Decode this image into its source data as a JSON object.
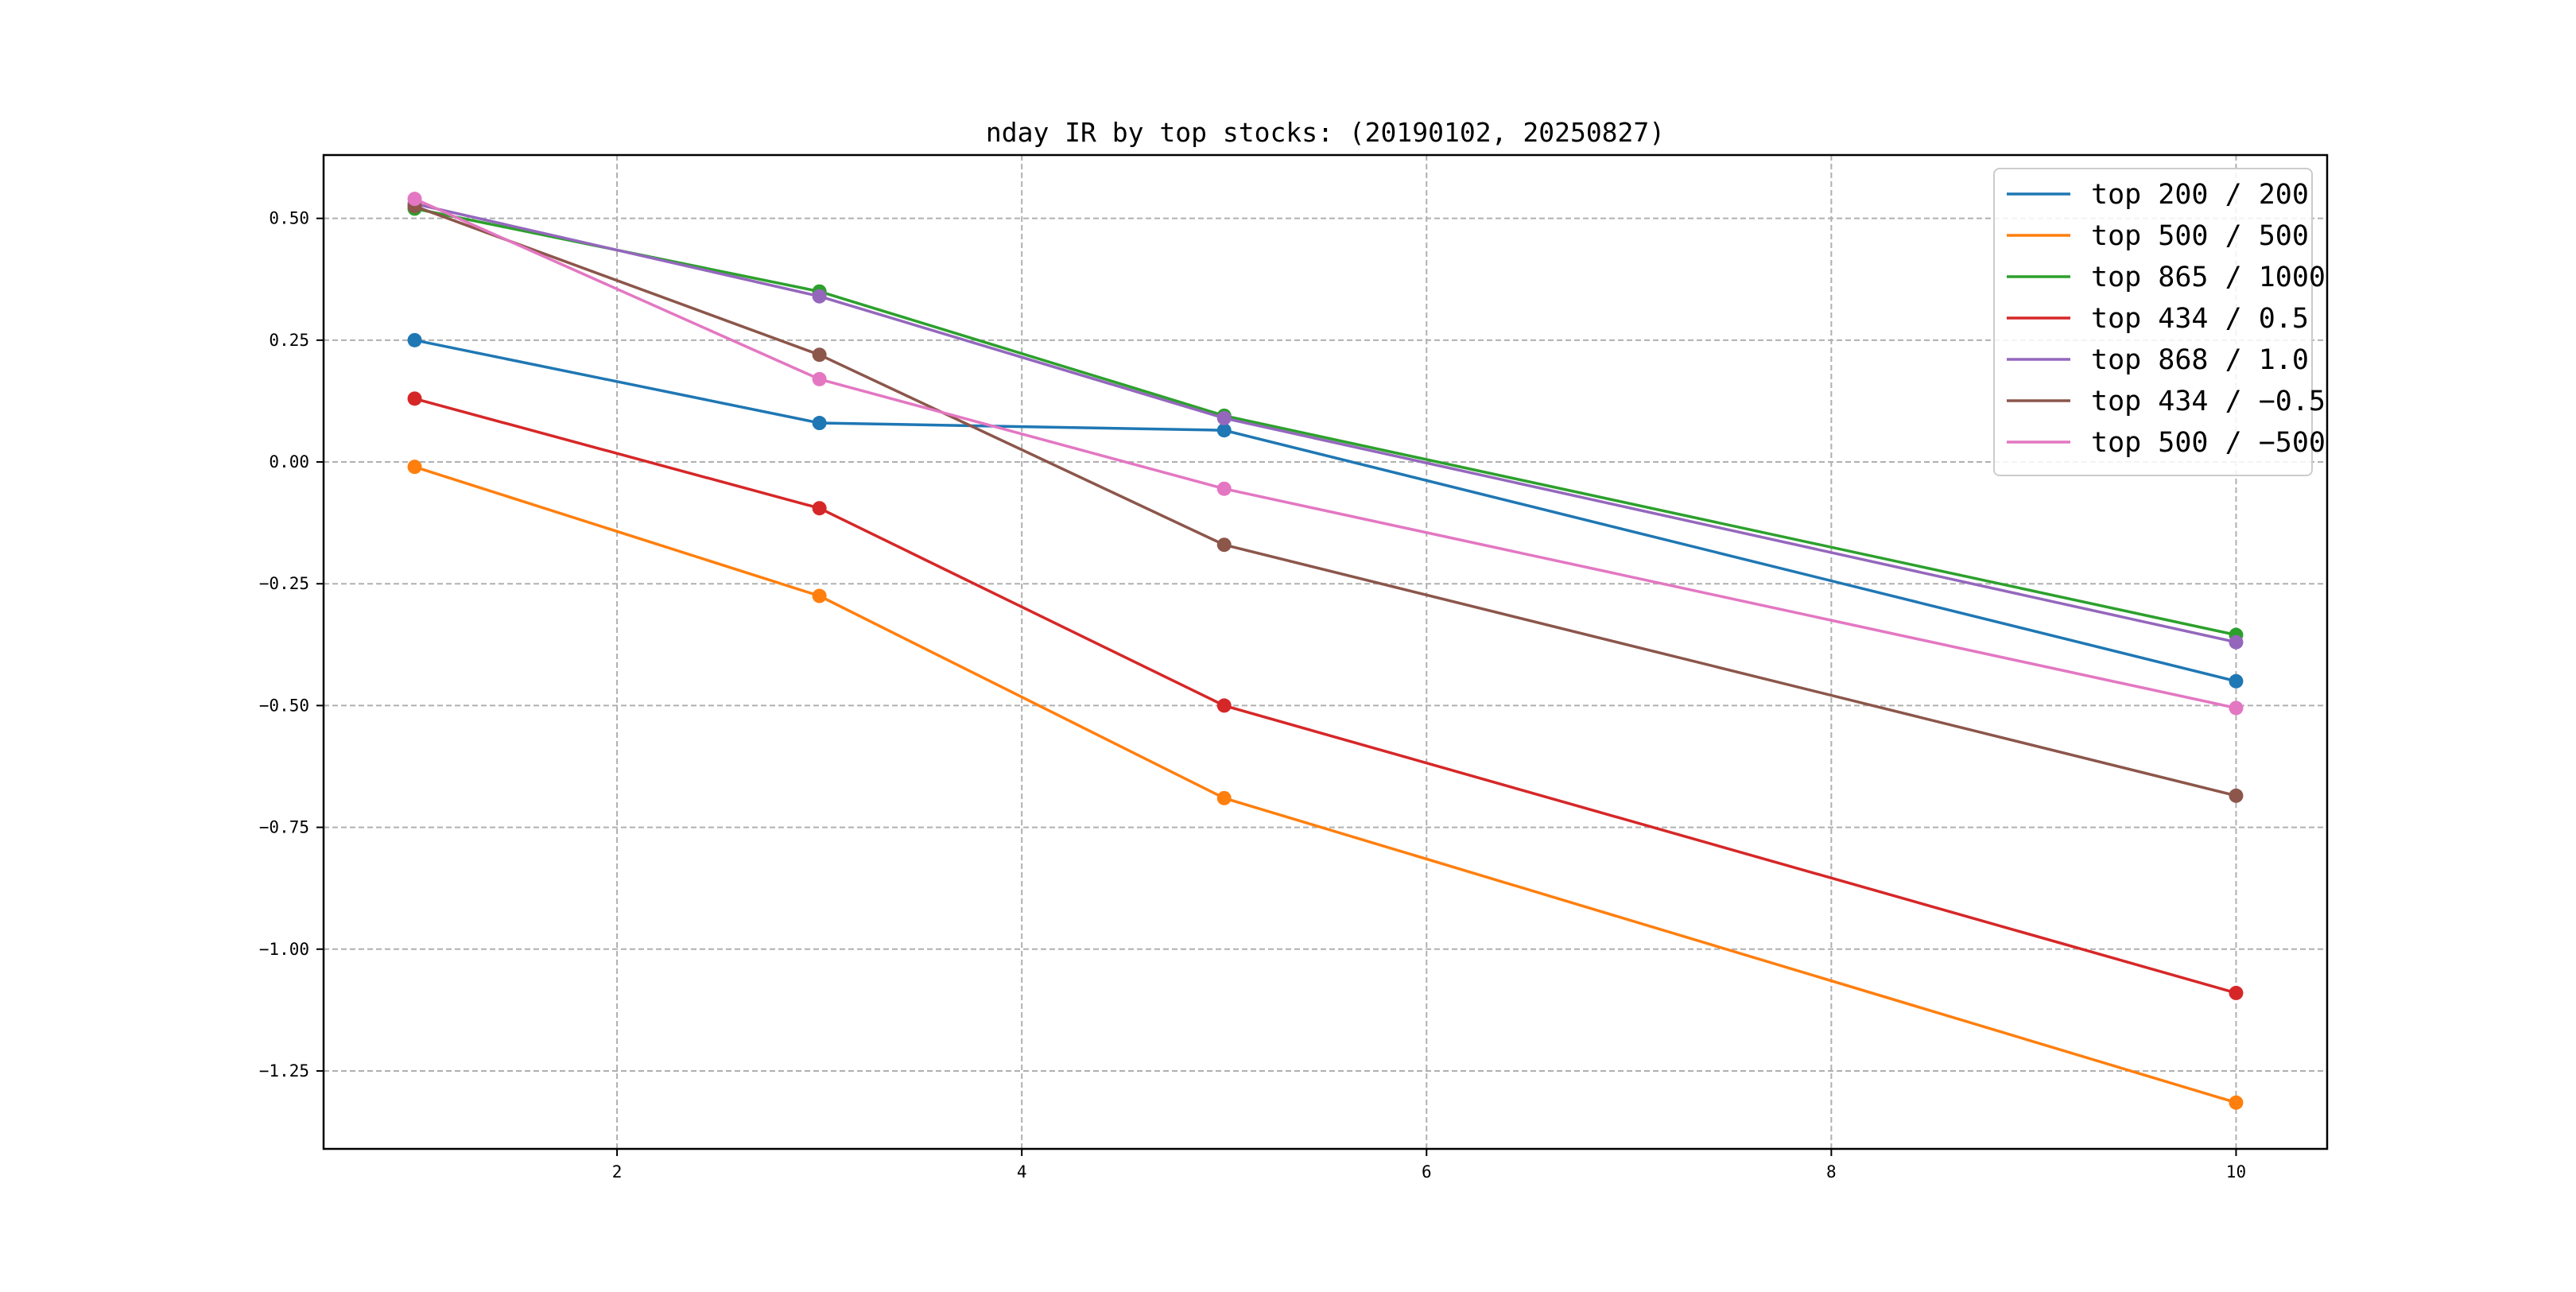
{
  "chart_data": {
    "type": "line",
    "title": "nday IR by top stocks: (20190102, 20250827)",
    "xlabel": "",
    "ylabel": "",
    "x": [
      1,
      3,
      5,
      10
    ],
    "xlim": [
      0.55,
      10.45
    ],
    "ylim": [
      -1.41,
      0.63
    ],
    "xticks": [
      2,
      4,
      6,
      8,
      10
    ],
    "xtick_labels": [
      "2",
      "4",
      "6",
      "8",
      "10"
    ],
    "yticks": [
      0.5,
      0.25,
      0.0,
      -0.25,
      -0.5,
      -0.75,
      -1.0,
      -1.25
    ],
    "ytick_labels": [
      "0.50",
      "0.25",
      "0.00",
      "−0.25",
      "−0.50",
      "−0.75",
      "−1.00",
      "−1.25"
    ],
    "grid": true,
    "legend_position": "top-right",
    "series": [
      {
        "name": "top 200 / 200",
        "color": "#1f77b4",
        "values": [
          0.25,
          0.08,
          0.065,
          -0.45
        ]
      },
      {
        "name": "top 500 / 500",
        "color": "#ff7f0e",
        "values": [
          -0.01,
          -0.275,
          -0.69,
          -1.315
        ]
      },
      {
        "name": "top 865 / 1000",
        "color": "#2ca02c",
        "values": [
          0.52,
          0.35,
          0.095,
          -0.355
        ]
      },
      {
        "name": "top 434 / 0.5",
        "color": "#d62728",
        "values": [
          0.13,
          -0.095,
          -0.5,
          -1.09
        ]
      },
      {
        "name": "top 868 / 1.0",
        "color": "#9467bd",
        "values": [
          0.53,
          0.34,
          0.09,
          -0.37
        ]
      },
      {
        "name": "top 434 / −0.5",
        "color": "#8c564b",
        "values": [
          0.525,
          0.22,
          -0.17,
          -0.685
        ]
      },
      {
        "name": "top 500 / −500",
        "color": "#e377c2",
        "values": [
          0.54,
          0.17,
          -0.055,
          -0.505
        ]
      }
    ]
  }
}
